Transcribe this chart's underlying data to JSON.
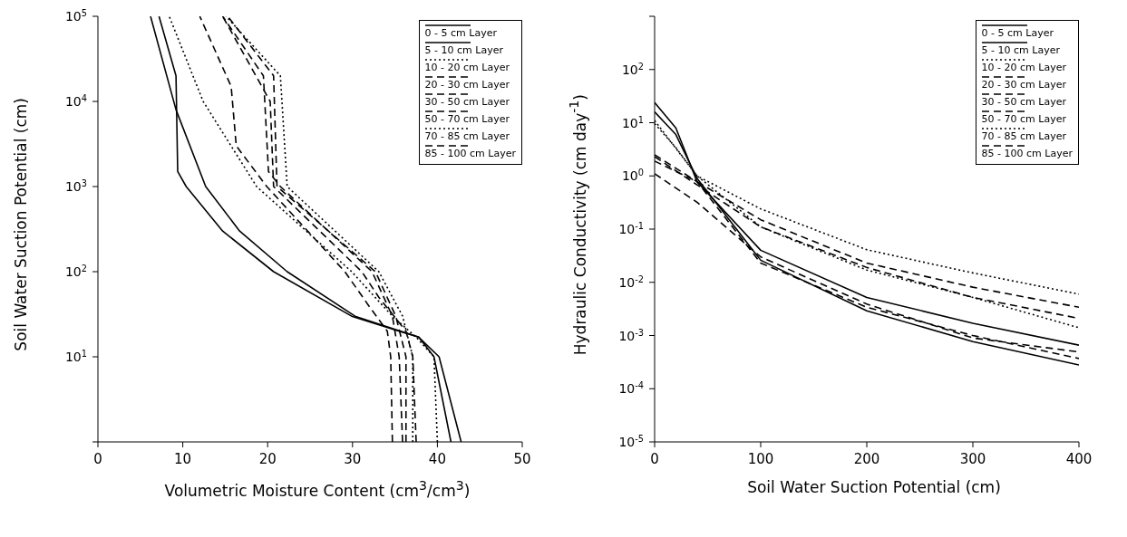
{
  "chart_data": [
    {
      "type": "line",
      "xlabel": "Volumetric Moisture Content (cm$^{3}$/cm$^{3}$)",
      "ylabel": "Soil Water Suction Potential  (cm)",
      "log": "y",
      "legend": "top right",
      "marker": "none",
      "xlim": [
        0,
        50
      ],
      "xticks": [
        0,
        10,
        20,
        30,
        40,
        50
      ],
      "ylim": [
        1,
        100000
      ],
      "yticks": [
        {
          "value": 1,
          "label": null
        },
        {
          "value": 10,
          "label": "10$^{1}$"
        },
        {
          "value": 100,
          "label": "10$^{2}$"
        },
        {
          "value": 1000,
          "label": "10$^{3}$"
        },
        {
          "value": 10000,
          "label": "10$^{4}$"
        },
        {
          "value": 100000,
          "label": "10$^{5}$"
        }
      ],
      "series": [
        {
          "name": "0 - 5 cm Layer",
          "color": "#000000",
          "line_style": "solid",
          "x": [
            41.6,
            39.6,
            37.8,
            35.5,
            29.9,
            20.7,
            14.7,
            10.4,
            9.4,
            9.2,
            7.2
          ],
          "values": [
            1,
            10,
            17,
            20,
            30,
            100,
            300,
            1000,
            1500,
            20000,
            100000
          ]
        },
        {
          "name": "5 - 10 cm Layer",
          "color": "#000000",
          "line_style": "solid",
          "x": [
            42.8,
            40.2,
            37.8,
            30.3,
            22.3,
            16.7,
            12.7,
            9.2,
            6.2
          ],
          "values": [
            1,
            10,
            17,
            30,
            100,
            300,
            1000,
            8000,
            100000
          ]
        },
        {
          "name": "10 - 20 cm Layer",
          "color": "#000000",
          "line_style": "dotted",
          "x": [
            40.0,
            39.6,
            37.5,
            34.7,
            29.9,
            18.7,
            12.4,
            8.4
          ],
          "values": [
            1,
            10,
            17,
            30,
            100,
            1000,
            10000,
            100000
          ]
        },
        {
          "name": "20 - 30 cm Layer",
          "color": "#000000",
          "line_style": "dashed",
          "x": [
            34.7,
            34.5,
            34.1,
            31.9,
            29.1,
            19.9,
            16.3,
            15.7,
            12.0
          ],
          "values": [
            1,
            10,
            20,
            40,
            100,
            1000,
            3000,
            15000,
            100000
          ]
        },
        {
          "name": "30 - 50 cm Layer",
          "color": "#000000",
          "line_style": "dashed",
          "x": [
            37.5,
            37.1,
            36.3,
            33.1,
            31.1,
            20.7,
            20.3,
            14.7
          ],
          "values": [
            1,
            10,
            20,
            50,
            100,
            1000,
            10000,
            100000
          ]
        },
        {
          "name": "50 - 70 cm Layer",
          "color": "#000000",
          "line_style": "dashed",
          "x": [
            35.9,
            35.5,
            34.7,
            32.3,
            21.5,
            20.1,
            19.5,
            14.7
          ],
          "values": [
            1,
            10,
            30,
            100,
            1000,
            1500,
            20000,
            100000
          ]
        },
        {
          "name": "70 - 85 cm Layer",
          "color": "#000000",
          "line_style": "dotted",
          "x": [
            37.1,
            37.1,
            35.9,
            33.1,
            22.3,
            21.5,
            15.1
          ],
          "values": [
            1,
            10,
            30,
            100,
            1000,
            20000,
            100000
          ]
        },
        {
          "name": "85 - 100 cm Layer",
          "color": "#000000",
          "line_style": "dashed",
          "x": [
            36.3,
            36.3,
            35.1,
            32.7,
            21.1,
            20.7,
            15.3
          ],
          "values": [
            1,
            10,
            30,
            100,
            1000,
            20000,
            100000
          ]
        }
      ]
    },
    {
      "type": "line",
      "xlabel": "Soil Water Suction Potential  (cm)",
      "ylabel": "Hydraulic Conductivity  (cm day$^{-1}$)",
      "log": "y",
      "legend": "top right",
      "marker": "none",
      "xlim": [
        0,
        400
      ],
      "xticks": [
        0,
        100,
        200,
        300,
        400
      ],
      "ylim": [
        1e-05,
        1000
      ],
      "yticks": [
        {
          "value": 1e-05,
          "label": "10$^{-5}$"
        },
        {
          "value": 0.0001,
          "label": "10$^{-4}$"
        },
        {
          "value": 0.001,
          "label": "10$^{-3}$"
        },
        {
          "value": 0.01,
          "label": "10$^{-2}$"
        },
        {
          "value": 0.1,
          "label": "10$^{-1}$"
        },
        {
          "value": 1,
          "label": "10$^{0}$"
        },
        {
          "value": 10,
          "label": "10$^{1}$"
        },
        {
          "value": 100,
          "label": "10$^{2}$"
        },
        {
          "value": 1000,
          "label": null
        }
      ],
      "series": [
        {
          "name": "0 - 5 cm Layer",
          "color": "#000000",
          "line_style": "solid",
          "x": [
            0,
            20,
            40,
            100,
            200,
            300,
            400
          ],
          "values": [
            24,
            8,
            0.78,
            0.04,
            0.0052,
            0.0017,
            0.00066
          ]
        },
        {
          "name": "5 - 10 cm Layer",
          "color": "#000000",
          "line_style": "solid",
          "x": [
            0,
            20,
            40,
            100,
            200,
            300,
            400
          ],
          "values": [
            16,
            6,
            0.9,
            0.026,
            0.0029,
            0.00077,
            0.00028
          ]
        },
        {
          "name": "10 - 20 cm Layer",
          "color": "#000000",
          "line_style": "dotted",
          "x": [
            0,
            20,
            40,
            100,
            200,
            300,
            400
          ],
          "values": [
            9.6,
            3.4,
            1.0,
            0.11,
            0.017,
            0.0052,
            0.0014
          ]
        },
        {
          "name": "20 - 30 cm Layer",
          "color": "#000000",
          "line_style": "dashed",
          "x": [
            0,
            40,
            100,
            200,
            300,
            400
          ],
          "values": [
            1.1,
            0.32,
            0.03,
            0.0039,
            0.0009,
            0.00049
          ]
        },
        {
          "name": "30 - 50 cm Layer",
          "color": "#000000",
          "line_style": "dashed",
          "x": [
            0,
            40,
            100,
            200,
            300,
            400
          ],
          "values": [
            2.3,
            0.68,
            0.11,
            0.019,
            0.0052,
            0.0021
          ]
        },
        {
          "name": "50 - 70 cm Layer",
          "color": "#000000",
          "line_style": "dashed",
          "x": [
            0,
            40,
            100,
            200,
            300,
            400
          ],
          "values": [
            1.9,
            0.78,
            0.15,
            0.023,
            0.0081,
            0.0034
          ]
        },
        {
          "name": "70 - 85 cm Layer",
          "color": "#000000",
          "line_style": "dotted",
          "x": [
            0,
            40,
            100,
            200,
            300,
            400
          ],
          "values": [
            11,
            1.0,
            0.24,
            0.041,
            0.015,
            0.006
          ]
        },
        {
          "name": "85 - 100 cm Layer",
          "color": "#000000",
          "line_style": "dashed",
          "x": [
            0,
            40,
            100,
            200,
            300,
            400
          ],
          "values": [
            2.5,
            0.78,
            0.023,
            0.0034,
            0.001,
            0.00037
          ]
        }
      ]
    }
  ]
}
